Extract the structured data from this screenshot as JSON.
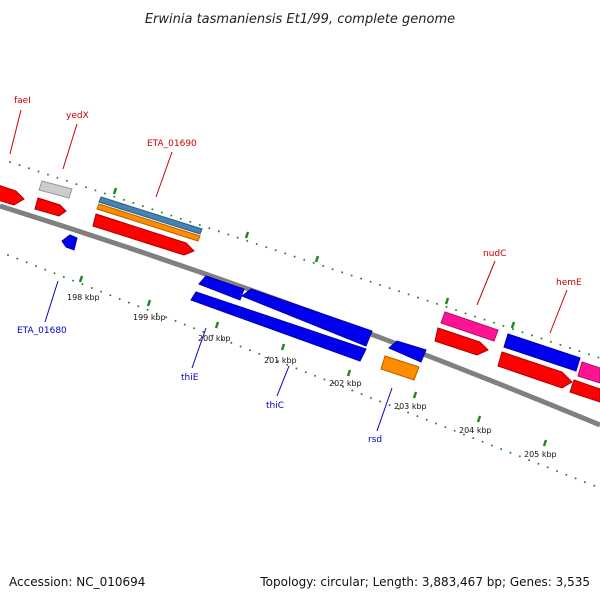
{
  "title": "Erwinia tasmaniensis Et1/99, complete genome",
  "footer": {
    "accession": "Accession: NC_010694",
    "summary": "Topology: circular; Length: 3,883,467 bp; Genes: 3,535"
  },
  "colors": {
    "backbone": "#808080",
    "forward_label": "#cc0000",
    "reverse_label": "#0000cc",
    "tick": "#228822",
    "red": "#ff0000",
    "blue": "#0000ee",
    "orange": "#ff8c00",
    "steel": "#4682b4",
    "magenta": "#ff1493",
    "grey": "#cccccc"
  },
  "tick_labels": [
    "198 kbp",
    "199 kbp",
    "200 kbp",
    "201 kbp",
    "202 kbp",
    "203 kbp",
    "204 kbp",
    "205 kbp"
  ],
  "gene_labels": {
    "fael": "faeI",
    "yedx": "yedX",
    "eta_01690": "ETA_01690",
    "eta_01680": "ETA_01680",
    "thie": "thiE",
    "thic": "thiC",
    "rsd": "rsd",
    "nudc": "nudC",
    "heme": "hemE"
  }
}
